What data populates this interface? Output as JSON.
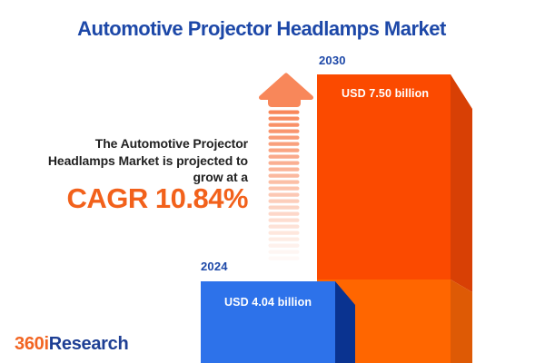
{
  "title": "Automotive Projector Headlamps Market",
  "blurb": {
    "line1": "The Automotive Projector",
    "line2": "Headlamps Market is projected to",
    "line3": "grow at a"
  },
  "cagr_label": "CAGR 10.84%",
  "logo": {
    "part1": "360i",
    "part2": "Research"
  },
  "icons": {
    "growth_arrow": "up-arrow-with-fading-stripes"
  },
  "colors": {
    "title_blue": "#1D48A8",
    "text_dark": "#212121",
    "accent_orange": "#F2611B",
    "arrow_orange": "#F8875A",
    "bar2024_face": "#2D72EA",
    "bar2024_side": "#0A3390",
    "bar2030_face_top": "#FB4A00",
    "bar2030_face_bottom": "#FF6600",
    "bar2030_side_top": "#D84005",
    "bar2030_side_bottom": "#DE5A05",
    "logo_orange": "#F26522",
    "logo_blue": "#1E3F94",
    "value_text": "#FFFFFF"
  },
  "chart_data": {
    "type": "bar",
    "title": "Automotive Projector Headlamps Market",
    "categories": [
      "2024",
      "2030"
    ],
    "series": [
      {
        "name": "Market size (USD billion)",
        "values": [
          4.04,
          7.5
        ]
      }
    ],
    "value_labels": [
      "USD 4.04 billion",
      "USD 7.50 billion"
    ],
    "cagr": "10.84%",
    "bar_colors": [
      "#2D72EA",
      "#FB4A00"
    ],
    "legend_position": "none",
    "grid": false,
    "axes_hidden": true,
    "note": "3D infographic bars, heights not to numeric scale; 2030 bar shows lighter lower segment at 2024 level"
  }
}
